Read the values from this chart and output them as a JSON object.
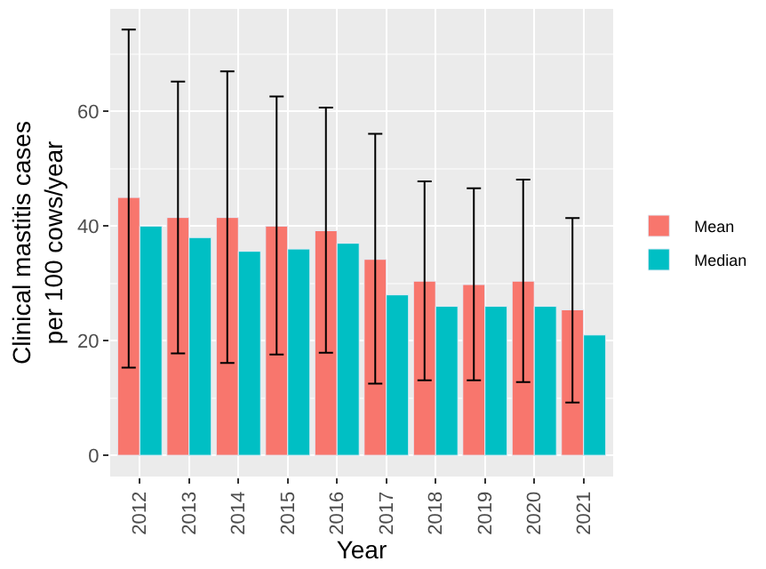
{
  "chart_data": {
    "type": "bar",
    "xlabel": "Year",
    "ylabel": "Clinical mastitis cases\nper 100 cows/year",
    "categories": [
      "2012",
      "2013",
      "2014",
      "2015",
      "2016",
      "2017",
      "2018",
      "2019",
      "2020",
      "2021"
    ],
    "series": [
      {
        "name": "Mean",
        "color": "#f8766d",
        "values": [
          45,
          41.5,
          41.5,
          40,
          39.2,
          34.2,
          30.4,
          29.8,
          30.4,
          25.4
        ],
        "errors": [
          [
            15.3,
            74.3
          ],
          [
            17.8,
            65.2
          ],
          [
            16.1,
            67
          ],
          [
            17.6,
            62.6
          ],
          [
            17.9,
            60.7
          ],
          [
            12.5,
            56.1
          ],
          [
            13.1,
            47.8
          ],
          [
            13.1,
            46.6
          ],
          [
            12.8,
            48.1
          ],
          [
            9.2,
            41.4
          ]
        ]
      },
      {
        "name": "Median",
        "color": "#00bfc4",
        "values": [
          40,
          38,
          35.6,
          36,
          37,
          28,
          26,
          26,
          26,
          21
        ]
      }
    ],
    "ylim": [
      -3.7,
      77.9
    ],
    "yticks": [
      0,
      20,
      40,
      60
    ],
    "grid": true,
    "legend": "right"
  }
}
